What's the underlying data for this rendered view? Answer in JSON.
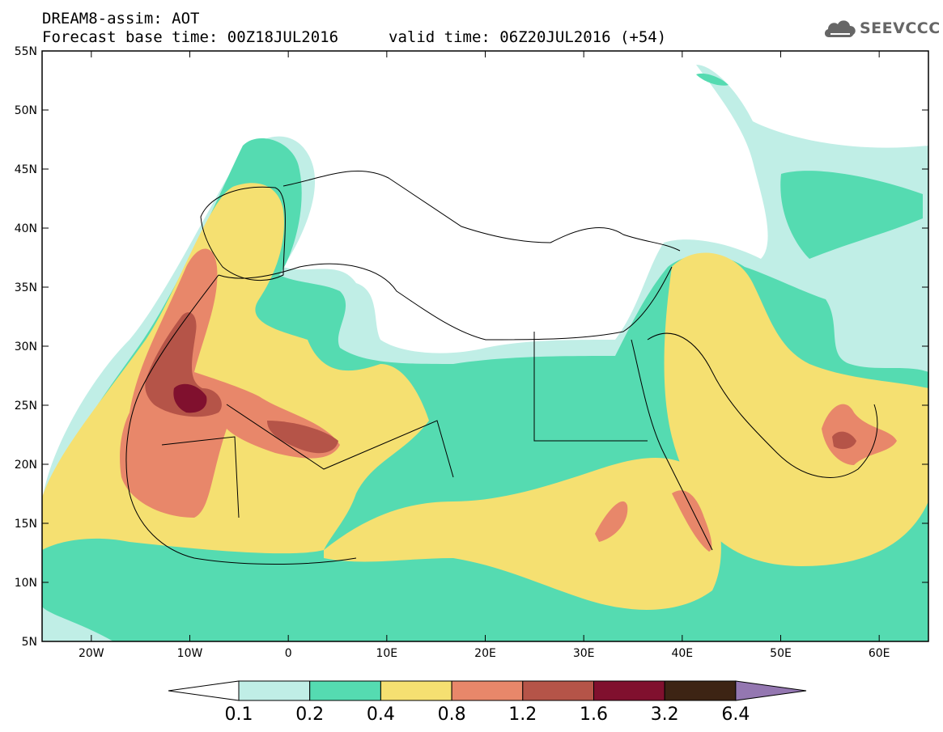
{
  "header": {
    "title": "DREAM8-assim: AOT",
    "base_time": "Forecast base time: 00Z18JUL2016",
    "valid_time": "valid time: 06Z20JUL2016 (+54)"
  },
  "logo": {
    "text": "SEEVCCC",
    "icon": "cloud-icon"
  },
  "map": {
    "lon_range": [
      -25,
      65
    ],
    "lat_range": [
      5,
      55
    ],
    "lat_ticks": [
      "55N",
      "50N",
      "45N",
      "40N",
      "35N",
      "30N",
      "25N",
      "20N",
      "15N",
      "10N",
      "5N"
    ],
    "lon_ticks": [
      "20W",
      "10W",
      "0",
      "10E",
      "20E",
      "30E",
      "40E",
      "50E",
      "60E"
    ]
  },
  "colorbar": {
    "labels": [
      "0.1",
      "0.2",
      "0.4",
      "0.8",
      "1.2",
      "1.6",
      "3.2",
      "6.4"
    ],
    "colors": [
      "#ffffff",
      "#c0eee6",
      "#55dbb1",
      "#f5e071",
      "#e8876a",
      "#b55448",
      "#80102e",
      "#3d2414",
      "#9477b1"
    ]
  },
  "palette": {
    "level_0_1": "#c0eee6",
    "level_0_2": "#55dbb1",
    "level_0_4": "#f5e071",
    "level_0_8": "#e8876a",
    "level_1_2": "#b55448",
    "level_1_6": "#80102e"
  }
}
